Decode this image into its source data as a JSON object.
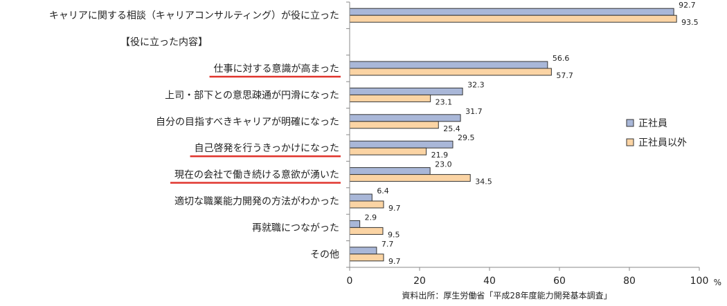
{
  "chart_data": {
    "type": "bar",
    "orientation": "horizontal",
    "title": "",
    "xlabel": "",
    "ylabel": "",
    "unit": "%",
    "xlim": [
      0,
      100
    ],
    "x_ticks": [
      0,
      20,
      40,
      60,
      80,
      100
    ],
    "x_tick_labels": [
      "0",
      "20",
      "40",
      "60",
      "80",
      "100"
    ],
    "grid": false,
    "legend_position": "right",
    "source_note": "資料出所：厚生労働省「平成28年度能力開発基本調査」",
    "categories": [
      "キャリアに関する相談（キャリアコンサルティング）が役に立った",
      "【役に立った内容】",
      "仕事に対する意識が高まった",
      "上司・部下との意思疎通が円滑になった",
      "自分の目指すべきキャリアが明確になった",
      "自己啓発を行うきっかけになった",
      "現在の会社で働き続ける意欲が湧いた",
      "適切な職業能力開発の方法がわかった",
      "再就職につながった",
      "その他"
    ],
    "underlined_categories": [
      "仕事に対する意識が高まった",
      "自己啓発を行うきっかけになった",
      "現在の会社で働き続ける意欲が湧いた"
    ],
    "series": [
      {
        "name": "正社員",
        "color": "#a9b7d8",
        "values": [
          92.7,
          null,
          56.6,
          32.3,
          31.7,
          29.5,
          23.0,
          6.4,
          2.9,
          7.7
        ],
        "labels": [
          "92.7",
          "",
          "56.6",
          "32.3",
          "31.7",
          "29.5",
          "23.0",
          "6.4",
          "2.9",
          "7.7"
        ]
      },
      {
        "name": "正社員以外",
        "color": "#fbd4a4",
        "values": [
          93.5,
          null,
          57.7,
          23.1,
          25.4,
          21.9,
          34.5,
          9.7,
          9.5,
          9.7
        ],
        "labels": [
          "93.5",
          "",
          "57.7",
          "23.1",
          "25.4",
          "21.9",
          "34.5",
          "9.7",
          "9.5",
          "9.7"
        ]
      }
    ],
    "colors": {
      "bar_border": "#333333",
      "underline": "#e0332b",
      "axis": "#888888",
      "text": "#222222"
    }
  }
}
